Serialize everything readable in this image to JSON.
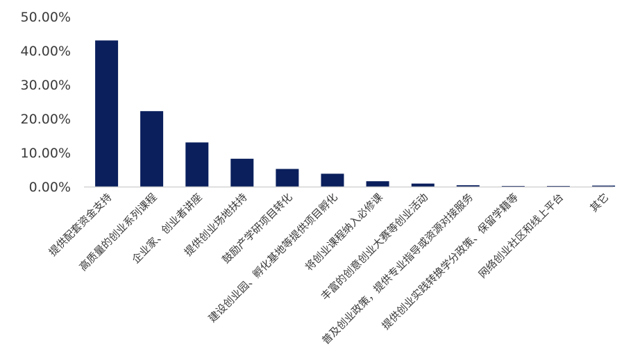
{
  "chart_data": {
    "type": "bar",
    "title": "",
    "xlabel": "",
    "ylabel": "",
    "ylim": [
      0,
      50
    ],
    "yticks": [
      0,
      10,
      20,
      30,
      40,
      50
    ],
    "ytick_labels": [
      "0.00%",
      "10.00%",
      "20.00%",
      "30.00%",
      "40.00%",
      "50.00%"
    ],
    "grid": false,
    "bar_color": "#0a1f5c",
    "categories": [
      "提供配套资金支持",
      "高质量的创业系列课程",
      "企业家、创业者讲座",
      "提供创业场地扶持",
      "鼓励产学研项目转化",
      "建设创业园、孵化基地等提供项目孵化",
      "将创业课程纳入必修课",
      "丰富的创意创业大赛等创业活动",
      "普及创业政策，提供专业指导或资源对接服务",
      "提供创业实践转换学分政策、保留学籍等",
      "网络创业社区和线上平台",
      "其它"
    ],
    "values": [
      43.0,
      22.2,
      13.0,
      8.2,
      5.2,
      3.8,
      1.6,
      0.9,
      0.4,
      0.1,
      0.1,
      0.3
    ]
  }
}
